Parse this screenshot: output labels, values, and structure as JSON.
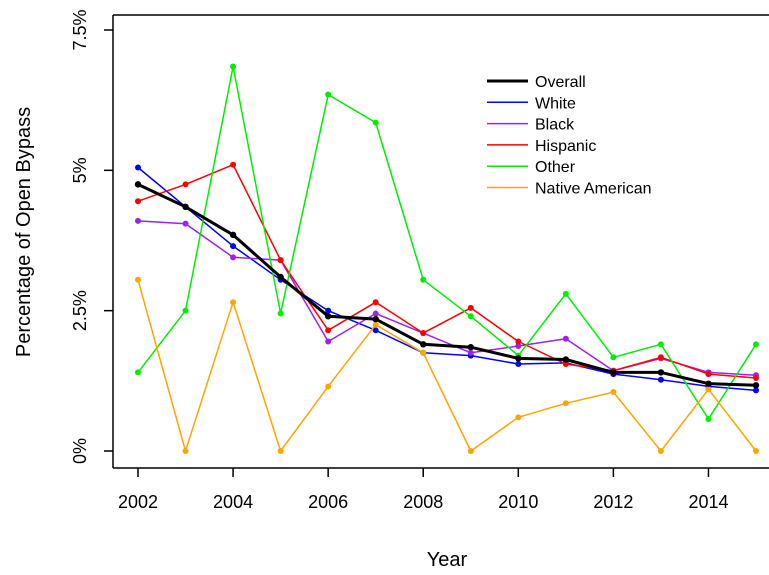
{
  "chart_data": {
    "type": "line",
    "xlabel": "Year",
    "ylabel": "Percentage of Open Bypass",
    "xlim": [
      2002,
      2015
    ],
    "ylim": [
      0,
      7.5
    ],
    "x_ticks": [
      2002,
      2004,
      2006,
      2008,
      2010,
      2012,
      2014
    ],
    "x_tick_labels": [
      "2002",
      "2004",
      "2006",
      "2008",
      "2010",
      "2012",
      "2014"
    ],
    "y_ticks": [
      0,
      2.5,
      5,
      7.5
    ],
    "y_tick_labels": [
      "0%",
      "2.5%",
      "5%",
      "7.5%"
    ],
    "legend_position": "top-right",
    "x": [
      2002,
      2003,
      2004,
      2005,
      2006,
      2007,
      2008,
      2009,
      2010,
      2011,
      2012,
      2013,
      2014,
      2015
    ],
    "series": [
      {
        "name": "Overall",
        "color": "#000000",
        "line_width": 3,
        "values": [
          4.75,
          4.35,
          3.85,
          3.1,
          2.4,
          2.35,
          1.9,
          1.85,
          1.65,
          1.63,
          1.4,
          1.4,
          1.2,
          1.17
        ]
      },
      {
        "name": "White",
        "color": "#0000ff",
        "line_width": 1.5,
        "values": [
          5.05,
          4.35,
          3.65,
          3.05,
          2.5,
          2.15,
          1.75,
          1.7,
          1.55,
          1.57,
          1.37,
          1.27,
          1.15,
          1.08
        ]
      },
      {
        "name": "Black",
        "color": "#a020f0",
        "line_width": 1.5,
        "values": [
          4.1,
          4.05,
          3.45,
          3.4,
          1.95,
          2.45,
          2.1,
          1.75,
          1.87,
          2.0,
          1.43,
          1.65,
          1.4,
          1.35
        ]
      },
      {
        "name": "Hispanic",
        "color": "#ff0000",
        "line_width": 1.5,
        "values": [
          4.45,
          4.75,
          5.1,
          3.4,
          2.15,
          2.65,
          2.1,
          2.55,
          1.95,
          1.55,
          1.43,
          1.67,
          1.37,
          1.3
        ]
      },
      {
        "name": "Other",
        "color": "#00ee00",
        "line_width": 1.5,
        "values": [
          1.4,
          2.5,
          6.85,
          2.45,
          6.35,
          5.85,
          3.05,
          2.4,
          1.7,
          2.8,
          1.67,
          1.9,
          0.57,
          1.9
        ]
      },
      {
        "name": "Native American",
        "color": "#ffa500",
        "line_width": 1.5,
        "values": [
          3.05,
          0.0,
          2.65,
          0.0,
          1.15,
          2.25,
          1.75,
          0.0,
          0.6,
          0.85,
          1.05,
          0.0,
          1.1,
          0.0
        ]
      }
    ]
  }
}
